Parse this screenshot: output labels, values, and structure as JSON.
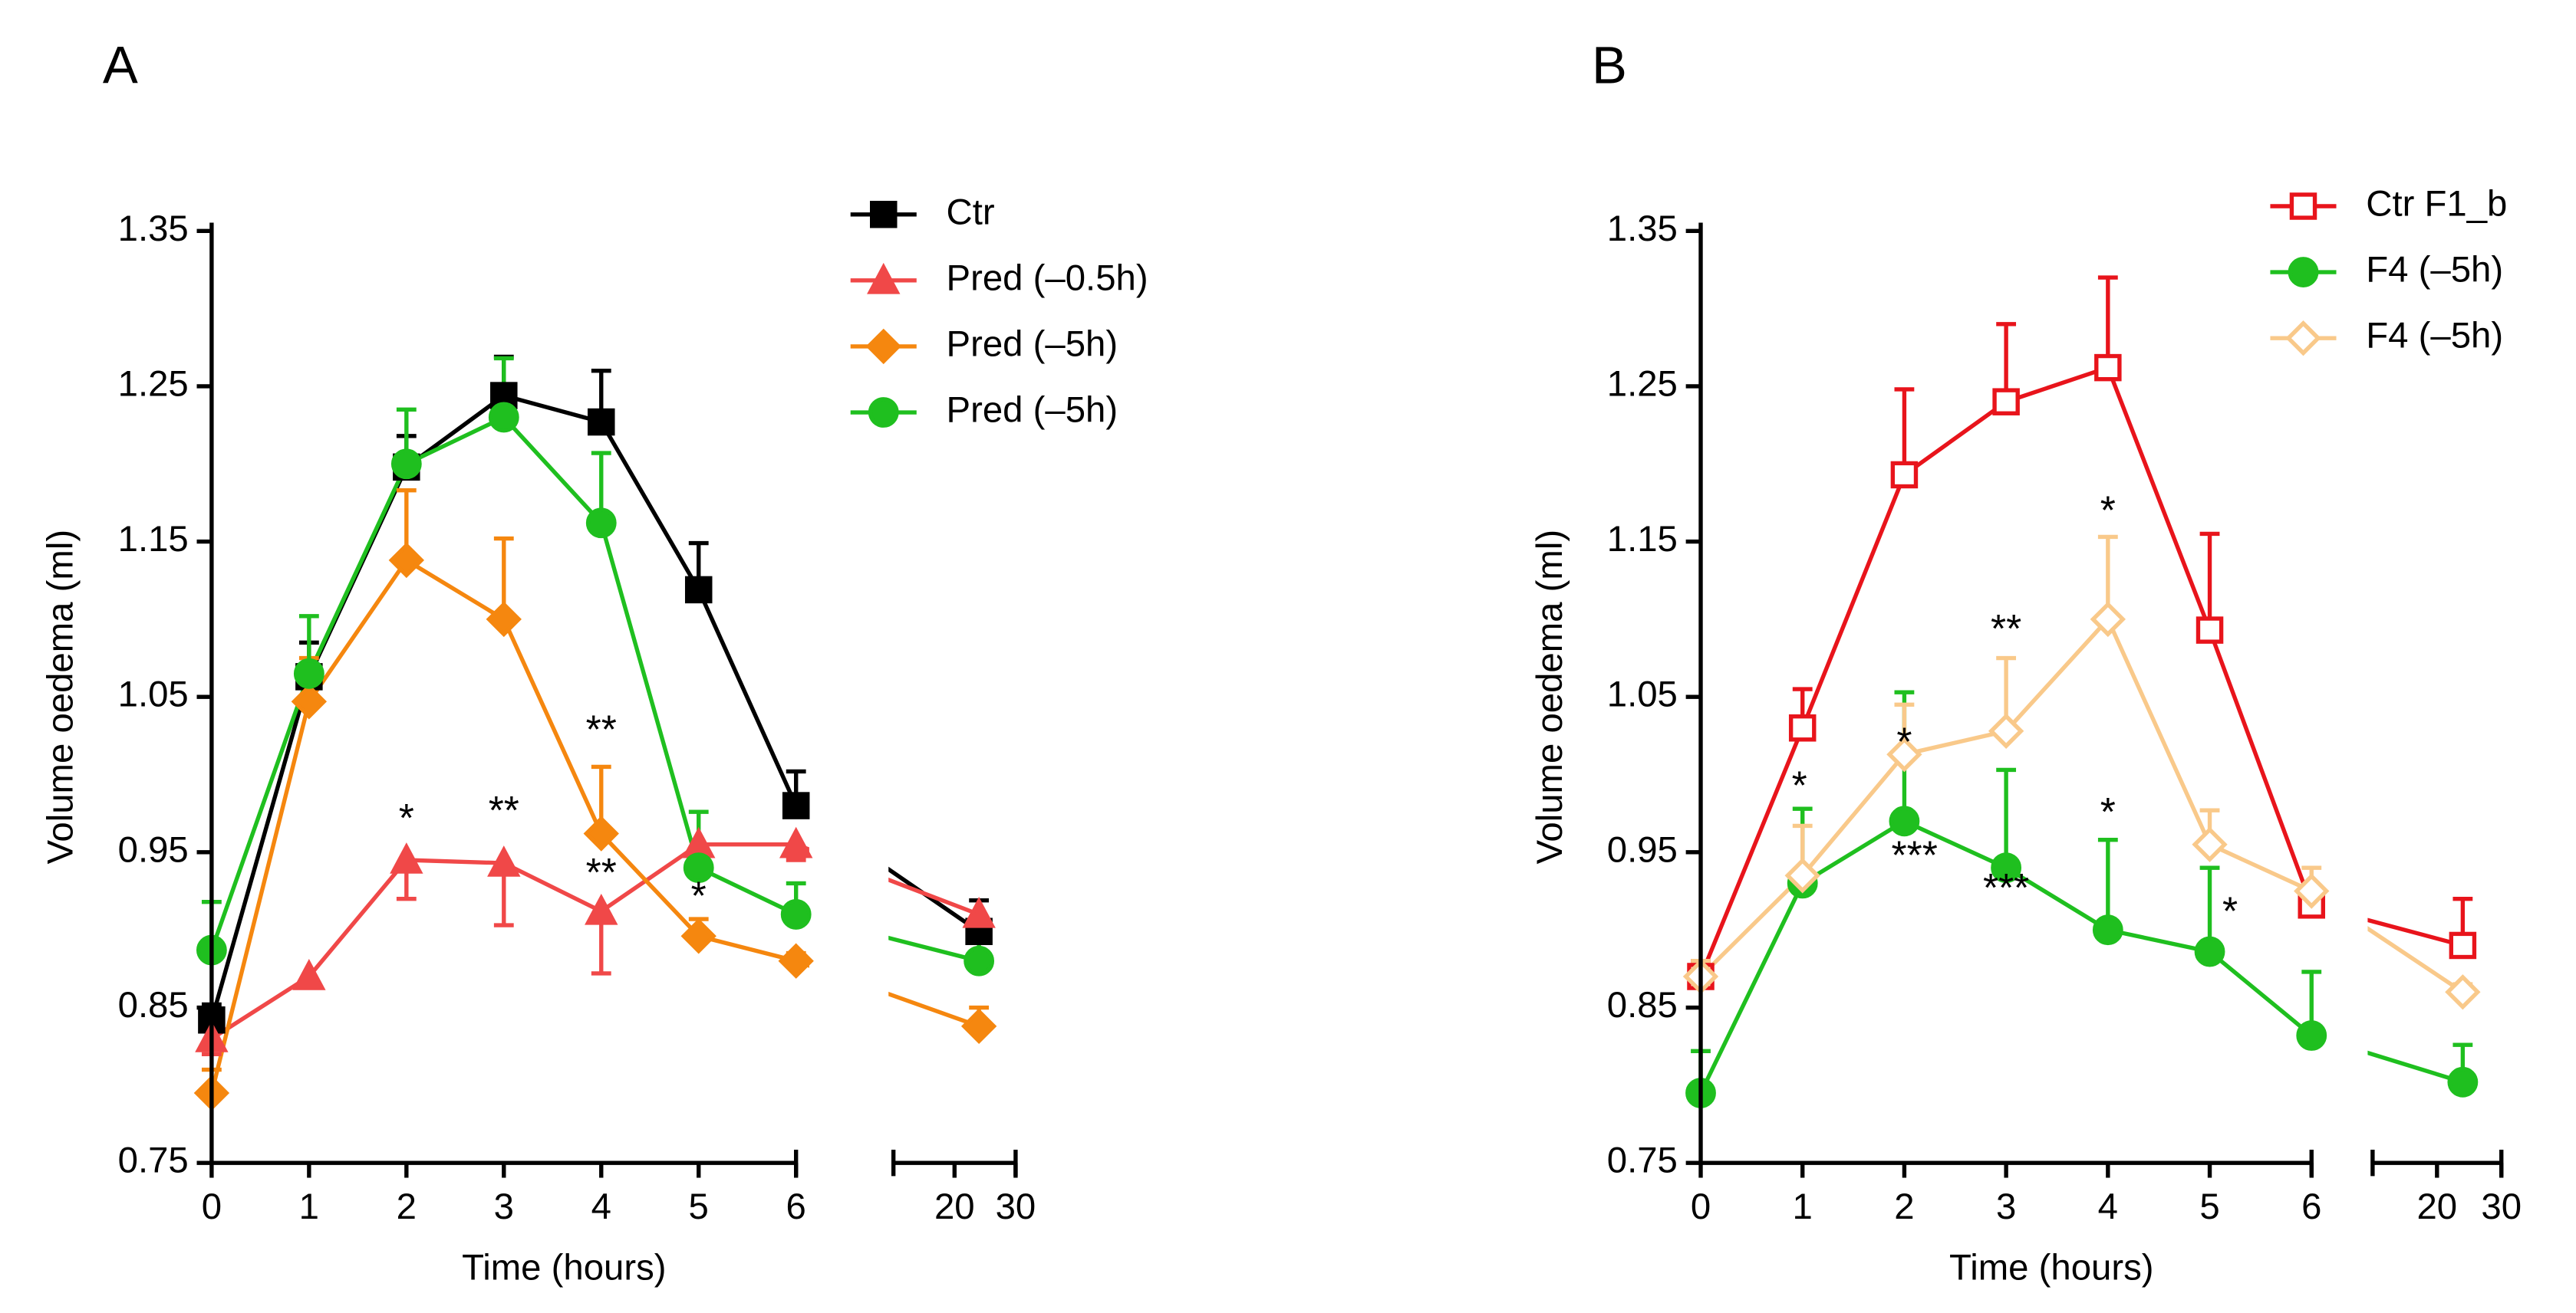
{
  "chart_data": [
    {
      "type": "line",
      "panel_label": "A",
      "xlabel": "Time (hours)",
      "ylabel": "Volume oedema (ml)",
      "x": [
        0,
        1,
        2,
        3,
        4,
        5,
        6,
        24
      ],
      "xlim": [
        0,
        6
      ],
      "xticks": [
        0,
        1,
        2,
        3,
        4,
        5,
        6
      ],
      "x2lim": [
        10,
        30
      ],
      "x2ticks": [
        20,
        30
      ],
      "ylim": [
        0.75,
        1.35
      ],
      "yticks": [
        0.75,
        0.85,
        0.95,
        1.05,
        1.15,
        1.25,
        1.35
      ],
      "series": [
        {
          "name": "Ctr",
          "color": "#000000",
          "marker": "square",
          "filled": true,
          "error_direction": "up",
          "values": [
            0.842,
            1.063,
            1.198,
            1.244,
            1.227,
            1.119,
            0.98,
            0.899
          ],
          "errors": [
            0.01,
            0.022,
            0.02,
            0.025,
            0.033,
            0.03,
            0.022,
            0.02
          ]
        },
        {
          "name": "Pred (–0.5h)",
          "color": "#f04848",
          "marker": "triangle",
          "filled": true,
          "error_direction": "down",
          "values": [
            0.83,
            0.87,
            0.945,
            0.943,
            0.912,
            0.955,
            0.955,
            0.91
          ],
          "errors": [
            0.01,
            0.005,
            0.025,
            0.04,
            0.04,
            0.01,
            0.01,
            0.01
          ]
        },
        {
          "name": "Pred (–5h)",
          "color": "#f5870f",
          "marker": "diamond",
          "filled": true,
          "error_direction": "up",
          "values": [
            0.795,
            1.047,
            1.138,
            1.1,
            0.962,
            0.896,
            0.88,
            0.838
          ],
          "errors": [
            0.015,
            0.028,
            0.045,
            0.052,
            0.043,
            0.011,
            0.005,
            0.012
          ]
        },
        {
          "name": "Pred (–5h)",
          "color": "#1fbf1f",
          "marker": "circle",
          "filled": true,
          "error_direction": "up",
          "values": [
            0.887,
            1.065,
            1.2,
            1.23,
            1.162,
            0.94,
            0.91,
            0.88
          ],
          "errors": [
            0.031,
            0.037,
            0.035,
            0.038,
            0.045,
            0.036,
            0.02,
            0.015
          ]
        }
      ],
      "annotations": [
        {
          "text": "*",
          "x": 2,
          "y": 0.97
        },
        {
          "text": "**",
          "x": 3,
          "y": 0.975
        },
        {
          "text": "**",
          "x": 4,
          "y": 1.027
        },
        {
          "text": "**",
          "x": 4,
          "y": 0.935
        },
        {
          "text": "*",
          "x": 5,
          "y": 0.92
        }
      ]
    },
    {
      "type": "line",
      "panel_label": "B",
      "xlabel": "Time (hours)",
      "ylabel": "Volume oedema (ml)",
      "x": [
        0,
        1,
        2,
        3,
        4,
        5,
        6,
        24
      ],
      "xlim": [
        0,
        6
      ],
      "xticks": [
        0,
        1,
        2,
        3,
        4,
        5,
        6
      ],
      "x2lim": [
        10,
        30
      ],
      "x2ticks": [
        20,
        30
      ],
      "ylim": [
        0.75,
        1.35
      ],
      "yticks": [
        0.75,
        0.85,
        0.95,
        1.05,
        1.15,
        1.25,
        1.35
      ],
      "series": [
        {
          "name": "Ctr F1_b",
          "color": "#e8141b",
          "marker": "square",
          "filled": false,
          "error_direction": "up",
          "values": [
            0.87,
            1.03,
            1.193,
            1.24,
            1.262,
            1.093,
            0.916,
            0.89
          ],
          "errors": [
            0.01,
            0.025,
            0.055,
            0.05,
            0.058,
            0.062,
            0.01,
            0.03
          ]
        },
        {
          "name": "F4 (–5h)",
          "color": "#1fbf1f",
          "marker": "circle",
          "filled": true,
          "error_direction": "up",
          "values": [
            0.795,
            0.93,
            0.97,
            0.94,
            0.9,
            0.886,
            0.832,
            0.802
          ],
          "errors": [
            0.027,
            0.048,
            0.083,
            0.063,
            0.058,
            0.054,
            0.041,
            0.024
          ]
        },
        {
          "name": "F4 (–5h)",
          "color": "#f9c98a",
          "marker": "diamond",
          "filled": false,
          "error_direction": "up",
          "values": [
            0.87,
            0.935,
            1.013,
            1.028,
            1.1,
            0.955,
            0.925,
            0.86
          ],
          "errors": [
            0.01,
            0.032,
            0.032,
            0.047,
            0.053,
            0.022,
            0.015,
            0.005
          ]
        }
      ],
      "annotations": [
        {
          "text": "*",
          "x": 0.97,
          "y": 0.991
        },
        {
          "text": "*",
          "x": 2,
          "y": 1.019
        },
        {
          "text": "**",
          "x": 3,
          "y": 1.092
        },
        {
          "text": "*",
          "x": 4,
          "y": 1.168
        },
        {
          "text": "***",
          "x": 2.1,
          "y": 0.946
        },
        {
          "text": "***",
          "x": 3,
          "y": 0.925
        },
        {
          "text": "*",
          "x": 4,
          "y": 0.974
        },
        {
          "text": "*",
          "x": 5.2,
          "y": 0.91
        }
      ]
    }
  ]
}
